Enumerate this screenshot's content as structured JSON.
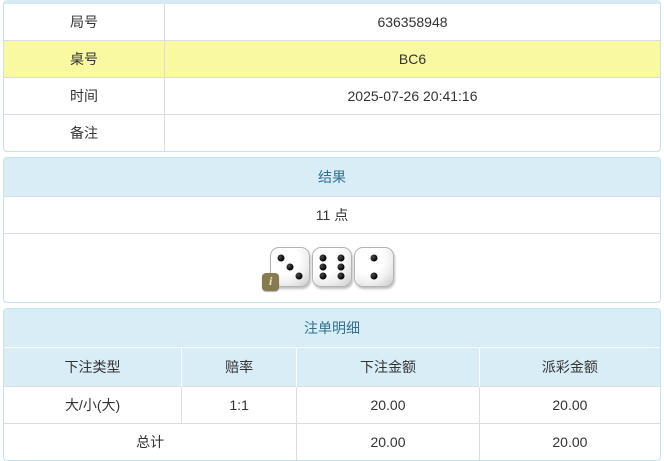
{
  "info_table": {
    "rows": [
      {
        "label": "局号",
        "value": "636358948",
        "highlight": false
      },
      {
        "label": "桌号",
        "value": "BC6",
        "highlight": true
      },
      {
        "label": "时间",
        "value": "2025-07-26 20:41:16",
        "highlight": false
      },
      {
        "label": "备注",
        "value": "",
        "highlight": false
      }
    ]
  },
  "result_panel": {
    "title": "结果",
    "points": "11 点",
    "dice": [
      3,
      6,
      2
    ],
    "info_badge_label": "i"
  },
  "bets_panel": {
    "title": "注单明细",
    "columns": [
      "下注类型",
      "赔率",
      "下注金额",
      "派彩金额"
    ],
    "rows": [
      {
        "bet_type": "大/小(大)",
        "odds": "1:1",
        "bet_amount": "20.00",
        "payout_amount": "20.00"
      }
    ],
    "total_row": {
      "label": "总计",
      "bet_amount": "20.00",
      "payout_amount": "20.00"
    }
  },
  "colors": {
    "panel_border": "#c2e3ef",
    "heading_bg": "#d9edf7",
    "heading_text": "#31708f",
    "highlight_yellow": "#f9f9a2",
    "odds_red": "#e53333",
    "cell_border": "#dddddd",
    "text": "#333333"
  }
}
